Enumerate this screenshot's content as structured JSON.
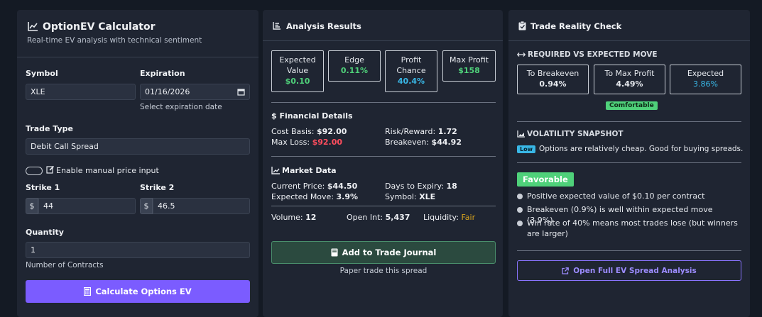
{
  "left": {
    "title": "OptionEV Calculator",
    "subtitle": "Real-time EV analysis with technical sentiment",
    "symbol_label": "Symbol",
    "symbol_value": "XLE",
    "expiration_label": "Expiration",
    "expiration_value": "01/16/2026",
    "expiration_hint": "Select expiration date",
    "trade_type_label": "Trade Type",
    "trade_type_value": "Debit Call Spread",
    "manual_price_label": "Enable manual price input",
    "strike1_label": "Strike 1",
    "strike1_value": "44",
    "strike2_label": "Strike 2",
    "strike2_value": "46.5",
    "dollar": "$",
    "quantity_label": "Quantity",
    "quantity_value": "1",
    "quantity_hint": "Number of Contracts",
    "calc_button": "Calculate Options EV"
  },
  "middle": {
    "title": "Analysis Results",
    "metrics": [
      {
        "label": "Expected Value",
        "value": "$0.10"
      },
      {
        "label": "Edge",
        "value": "0.11%"
      },
      {
        "label": "Profit Chance",
        "value": "40.4%"
      },
      {
        "label": "Max Profit",
        "value": "$158"
      }
    ],
    "financial_title": "$ Financial Details",
    "cost_basis_label": "Cost Basis:",
    "cost_basis_value": "$92.00",
    "risk_reward_label": "Risk/Reward:",
    "risk_reward_value": "1.72",
    "max_loss_label": "Max Loss:",
    "max_loss_value": "$92.00",
    "breakeven_label": "Breakeven:",
    "breakeven_value": "$44.92",
    "market_title": "Market Data",
    "current_price_label": "Current Price:",
    "current_price_value": "$44.50",
    "days_label": "Days to Expiry:",
    "days_value": "18",
    "exp_move_label": "Expected Move:",
    "exp_move_value": "3.9%",
    "symbol_label": "Symbol:",
    "symbol_value": "XLE",
    "volume_label": "Volume:",
    "volume_value": "12",
    "oi_label": "Open Int:",
    "oi_value": "5,437",
    "liq_label": "Liquidity:",
    "liq_value": "Fair",
    "journal_button": "Add to Trade Journal",
    "journal_hint": "Paper trade this spread"
  },
  "right": {
    "title": "Trade Reality Check",
    "req_title": "REQUIRED VS EXPECTED MOVE",
    "req_boxes": [
      {
        "label": "To Breakeven",
        "value": "0.94%"
      },
      {
        "label": "To Max Profit",
        "value": "4.49%"
      },
      {
        "label": "Expected",
        "value": "3.86%"
      }
    ],
    "comfort_badge": "Comfortable",
    "vol_title": "VOLATILITY SNAPSHOT",
    "vol_badge": "Low",
    "vol_text": "Options are relatively cheap. Good for buying spreads.",
    "verdict": "Favorable",
    "bullets": [
      "Positive expected value of $0.10 per contract",
      "Breakeven (0.9%) is well within expected move (3.9%)",
      "Win rate of 40% means most trades lose (but winners are larger)"
    ],
    "analysis_button": "Open Full EV Spread Analysis"
  },
  "colors": {
    "accent": "#7b5cff",
    "green": "#4fd17a",
    "cyan": "#39b7e6",
    "red": "#ff4d5e",
    "amber": "#d6a21e"
  }
}
